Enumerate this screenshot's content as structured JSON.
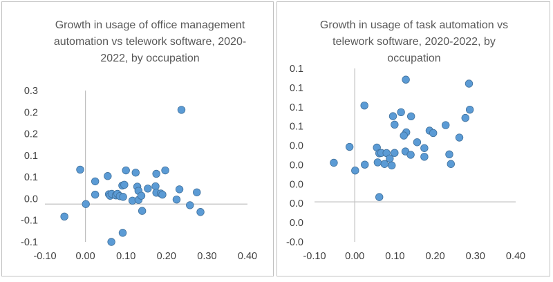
{
  "chart_data": [
    {
      "type": "scatter",
      "title_lines": [
        "Growth in usage of office management",
        "automation vs telework software, 2020-",
        "2022, by occupation"
      ],
      "xlabel": "",
      "ylabel": "",
      "xlim": [
        -0.1,
        0.4
      ],
      "ylim": [
        -0.1,
        0.3
      ],
      "x_tick_labels": [
        "-0.10",
        "0.00",
        "0.10",
        "0.20",
        "0.30",
        "0.40"
      ],
      "y_tick_labels": [
        "0.3",
        "0.2",
        "0.2",
        "0.1",
        "0.1",
        "0.0",
        "-0.1",
        "-0.1"
      ],
      "grid": false,
      "marker_color": "#5b9bd5",
      "marker_edge_color": "#41719c",
      "points": [
        {
          "x": 0.237,
          "y": 0.249
        },
        {
          "x": -0.052,
          "y": -0.033
        },
        {
          "x": -0.013,
          "y": 0.091
        },
        {
          "x": 0.001,
          "y": 0.0
        },
        {
          "x": 0.024,
          "y": 0.06
        },
        {
          "x": 0.024,
          "y": 0.025
        },
        {
          "x": 0.055,
          "y": 0.074
        },
        {
          "x": 0.058,
          "y": 0.026
        },
        {
          "x": 0.061,
          "y": 0.022
        },
        {
          "x": 0.065,
          "y": 0.027
        },
        {
          "x": 0.064,
          "y": -0.1
        },
        {
          "x": 0.075,
          "y": 0.023
        },
        {
          "x": 0.079,
          "y": 0.027
        },
        {
          "x": 0.085,
          "y": 0.021
        },
        {
          "x": 0.093,
          "y": 0.019
        },
        {
          "x": 0.091,
          "y": 0.049
        },
        {
          "x": 0.096,
          "y": 0.051
        },
        {
          "x": 0.1,
          "y": 0.089
        },
        {
          "x": 0.092,
          "y": -0.076
        },
        {
          "x": 0.116,
          "y": 0.009
        },
        {
          "x": 0.124,
          "y": 0.083
        },
        {
          "x": 0.128,
          "y": 0.046
        },
        {
          "x": 0.131,
          "y": 0.035
        },
        {
          "x": 0.131,
          "y": 0.011
        },
        {
          "x": 0.138,
          "y": 0.022
        },
        {
          "x": 0.14,
          "y": -0.018
        },
        {
          "x": 0.154,
          "y": 0.041
        },
        {
          "x": 0.173,
          "y": 0.047
        },
        {
          "x": 0.175,
          "y": 0.03
        },
        {
          "x": 0.175,
          "y": 0.08
        },
        {
          "x": 0.186,
          "y": 0.028
        },
        {
          "x": 0.19,
          "y": 0.025
        },
        {
          "x": 0.197,
          "y": 0.089
        },
        {
          "x": 0.225,
          "y": 0.012
        },
        {
          "x": 0.232,
          "y": 0.039
        },
        {
          "x": 0.258,
          "y": -0.003
        },
        {
          "x": 0.275,
          "y": 0.031
        },
        {
          "x": 0.284,
          "y": -0.021
        }
      ]
    },
    {
      "type": "scatter",
      "title_lines": [
        "Growth in usage of task automation vs",
        "telework software, 2020-2022, by",
        "occupation"
      ],
      "xlabel": "",
      "ylabel": "",
      "xlim": [
        -0.1,
        0.4
      ],
      "ylim": [
        -0.03,
        0.1
      ],
      "x_tick_labels": [
        "-0.10",
        "0.00",
        "0.10",
        "0.20",
        "0.30",
        "0.40"
      ],
      "y_tick_labels": [
        "0.1",
        "0.1",
        "0.1",
        "0.1",
        "0.0",
        "0.0",
        "0.0",
        "0.0",
        "0.0",
        "-0.0"
      ],
      "grid": false,
      "marker_color": "#5b9bd5",
      "marker_edge_color": "#41719c",
      "points": [
        {
          "x": 0.127,
          "y": 0.0916
        },
        {
          "x": 0.284,
          "y": 0.0886
        },
        {
          "x": 0.024,
          "y": 0.0722
        },
        {
          "x": 0.286,
          "y": 0.0691
        },
        {
          "x": 0.115,
          "y": 0.0672
        },
        {
          "x": 0.095,
          "y": 0.0642
        },
        {
          "x": 0.14,
          "y": 0.0641
        },
        {
          "x": 0.275,
          "y": 0.0629
        },
        {
          "x": 0.099,
          "y": 0.0579
        },
        {
          "x": 0.226,
          "y": 0.0575
        },
        {
          "x": 0.186,
          "y": 0.0534
        },
        {
          "x": 0.128,
          "y": 0.0521
        },
        {
          "x": 0.195,
          "y": 0.0516
        },
        {
          "x": 0.122,
          "y": 0.0497
        },
        {
          "x": 0.26,
          "y": 0.0482
        },
        {
          "x": 0.155,
          "y": 0.0447
        },
        {
          "x": -0.013,
          "y": 0.0412
        },
        {
          "x": 0.055,
          "y": 0.0407
        },
        {
          "x": 0.173,
          "y": 0.0403
        },
        {
          "x": 0.126,
          "y": 0.0378
        },
        {
          "x": 0.061,
          "y": 0.0364
        },
        {
          "x": 0.066,
          "y": 0.0367
        },
        {
          "x": 0.079,
          "y": 0.0366
        },
        {
          "x": 0.099,
          "y": 0.0367
        },
        {
          "x": 0.139,
          "y": 0.0353
        },
        {
          "x": 0.235,
          "y": 0.0356
        },
        {
          "x": 0.173,
          "y": 0.0338
        },
        {
          "x": 0.087,
          "y": 0.0325
        },
        {
          "x": -0.052,
          "y": 0.0293
        },
        {
          "x": 0.057,
          "y": 0.0296
        },
        {
          "x": 0.074,
          "y": 0.0284
        },
        {
          "x": 0.025,
          "y": 0.0279
        },
        {
          "x": 0.092,
          "y": 0.0273
        },
        {
          "x": 0.239,
          "y": 0.0284
        },
        {
          "x": 0.001,
          "y": 0.0235
        },
        {
          "x": 0.061,
          "y": 0.0036
        }
      ]
    }
  ]
}
